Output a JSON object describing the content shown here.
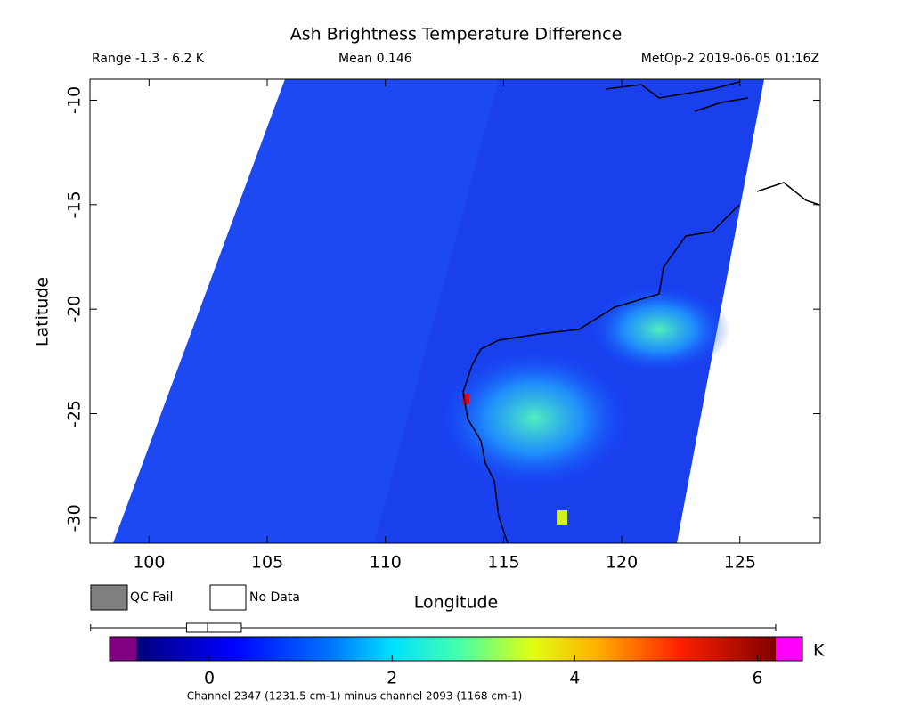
{
  "header": {
    "title": "Ash Brightness Temperature Difference",
    "range": "Range -1.3 - 6.2 K",
    "mean": "Mean 0.146",
    "source": "MetOp-2 2019-06-05 01:16Z"
  },
  "map": {
    "x_label": "Longitude",
    "y_label": "Latitude",
    "xlim": [
      97.5,
      128.4
    ],
    "ylim": [
      -31.2,
      -9
    ],
    "xticks": [
      100,
      105,
      110,
      115,
      120,
      125
    ],
    "yticks": [
      -10,
      -15,
      -20,
      -25,
      -30
    ]
  },
  "legend": {
    "qc_fail": "QC Fail",
    "no_data": "No Data"
  },
  "colorbar": {
    "lim": [
      -0.8,
      6.2
    ],
    "ticks": [
      0,
      2,
      4,
      6
    ],
    "unit": "K",
    "distribution": {
      "min": -1.3,
      "q1": -0.25,
      "median": -0.02,
      "q3": 0.35,
      "max": 6.2
    }
  },
  "footnote": "Channel 2347 (1231.5 cm-1) minus channel 2093 (1168 cm-1)"
}
